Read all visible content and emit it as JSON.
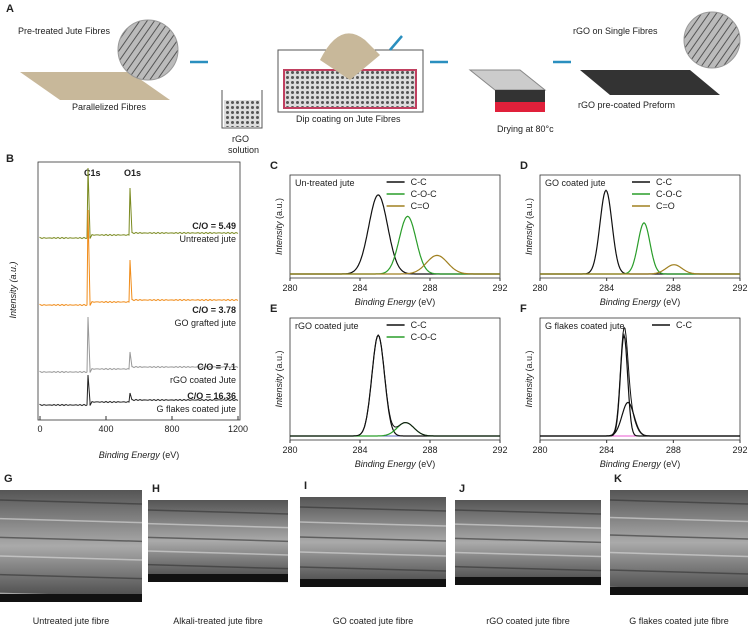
{
  "A": {
    "label": "A",
    "pretreated": "Pre-treated Jute Fibres",
    "parallelized": "Parallelized Fibres",
    "rgo": "rGO",
    "solution": "solution",
    "dip": "Dip coating on Jute Fibres",
    "drying": "Drying at 80°c",
    "single": "rGO on Single Fibres",
    "preform": "rGO pre-coated Preform"
  },
  "B": {
    "label": "B",
    "peaks": [
      "C1s",
      "O1s"
    ],
    "spectra": [
      {
        "ratio": "C/O = 5.49",
        "name": "Untreated jute"
      },
      {
        "ratio": "C/O = 3.78",
        "name": "GO grafted jute"
      },
      {
        "ratio": "C/O = 7.1",
        "name": "rGO coated Jute"
      },
      {
        "ratio": "C/O = 16.36",
        "name": "G flakes coated jute"
      }
    ],
    "xticks": [
      0,
      400,
      800,
      1200
    ],
    "xlabel": "Binding Energy",
    "xunit": "(eV)",
    "ylabel": "Intensity (a.u.)"
  },
  "xps": [
    {
      "label": "C",
      "title": "Un-treated jute",
      "legend": [
        "C-C",
        "C-O-C",
        "C=O"
      ],
      "xticks": [
        280,
        284,
        288,
        292
      ],
      "xlabel": "Binding Energy",
      "xunit": "(eV)",
      "ylabel": "Intensity",
      "yunit": "(a.u.)"
    },
    {
      "label": "D",
      "title": "GO coated jute",
      "legend": [
        "C-C",
        "C-O-C",
        "C=O"
      ],
      "xticks": [
        280,
        284,
        288,
        292
      ],
      "xlabel": "Binding Energy",
      "xunit": "(eV)",
      "ylabel": "Intensity",
      "yunit": "(a.u.)"
    },
    {
      "label": "E",
      "title": "rGO coated jute",
      "legend": [
        "C-C",
        "C-O-C"
      ],
      "xticks": [
        280,
        284,
        288,
        292
      ],
      "xlabel": "Binding Energy",
      "xunit": "(eV)",
      "ylabel": "Intensity",
      "yunit": "(a.u.)"
    },
    {
      "label": "F",
      "title": "G flakes coated jute",
      "legend": [
        "C-C"
      ],
      "xticks": [
        280,
        284,
        288,
        292
      ],
      "xlabel": "Binding Energy",
      "xunit": "(eV)",
      "ylabel": "Intensity",
      "yunit": "(a.u.)"
    }
  ],
  "sem": [
    {
      "label": "G",
      "caption": "Untreated jute fibre"
    },
    {
      "label": "H",
      "caption": "Alkali-treated jute fibre"
    },
    {
      "label": "I",
      "caption": "GO coated jute fibre"
    },
    {
      "label": "J",
      "caption": "rGO coated jute fibre"
    },
    {
      "label": "K",
      "caption": "G flakes coated jute fibre"
    }
  ]
}
